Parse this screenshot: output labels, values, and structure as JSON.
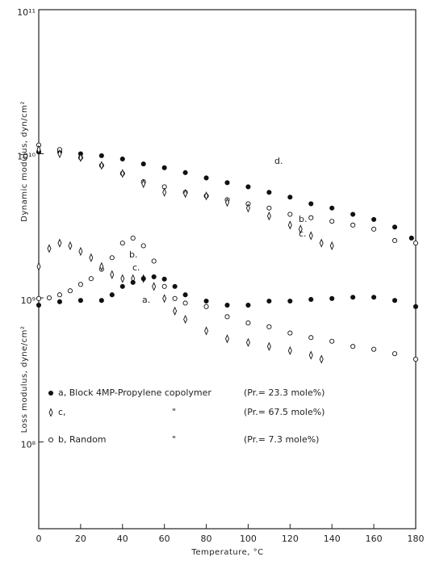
{
  "chart_data": {
    "type": "scatter",
    "x_label": "Temperature, °C",
    "y_labels": [
      "Dynamic modulus, dyn/cm²",
      "Loss modulus, dyne/cm²"
    ],
    "xlim": [
      0,
      180
    ],
    "xticks": [
      0,
      20,
      40,
      60,
      80,
      100,
      120,
      140,
      160,
      180
    ],
    "ylim": [
      25000000,
      100000000000
    ],
    "yscale": "log",
    "yticks": [
      {
        "value": 100000000,
        "label": "10⁸"
      },
      {
        "value": 1000000000,
        "label": "10⁹"
      },
      {
        "value": 10000000000,
        "label": "10¹⁰"
      },
      {
        "value": 100000000000,
        "label": "10¹¹"
      }
    ],
    "color": "#111111",
    "series": [
      {
        "label": "d.",
        "marker": "filled",
        "x": [
          0,
          10,
          20,
          30,
          40,
          50,
          60,
          70,
          80,
          90,
          100,
          110,
          120,
          130,
          140,
          150,
          160,
          170,
          178
        ],
        "values": [
          10300000000.0,
          10300000000.0,
          10000000000.0,
          9700000000.0,
          9200000000.0,
          8500000000.0,
          8000000000.0,
          7400000000.0,
          6800000000.0,
          6300000000.0,
          5900000000.0,
          5400000000.0,
          5000000000.0,
          4500000000.0,
          4200000000.0,
          3800000000.0,
          3500000000.0,
          3100000000.0,
          2600000000.0
        ]
      },
      {
        "label": "b.",
        "marker": "open",
        "x": [
          0,
          10,
          20,
          30,
          40,
          50,
          60,
          70,
          80,
          90,
          100,
          110,
          120,
          130,
          140,
          150,
          160,
          170,
          180
        ],
        "values": [
          11500000000.0,
          10700000000.0,
          9400000000.0,
          8300000000.0,
          7300000000.0,
          6400000000.0,
          5900000000.0,
          5400000000.0,
          5100000000.0,
          4800000000.0,
          4500000000.0,
          4200000000.0,
          3800000000.0,
          3600000000.0,
          3400000000.0,
          3200000000.0,
          3000000000.0,
          2500000000.0,
          2400000000.0
        ]
      },
      {
        "label": "c.",
        "marker": "diamond",
        "x": [
          0,
          10,
          20,
          30,
          40,
          50,
          60,
          70,
          80,
          90,
          100,
          110,
          120,
          125,
          130,
          135,
          140
        ],
        "values": [
          10700000000.0,
          10000000000.0,
          9400000000.0,
          8300000000.0,
          7300000000.0,
          6200000000.0,
          5400000000.0,
          5300000000.0,
          5100000000.0,
          4600000000.0,
          4200000000.0,
          3700000000.0,
          3200000000.0,
          3000000000.0,
          2700000000.0,
          2400000000.0,
          2300000000.0
        ]
      },
      {
        "label": "b.",
        "marker": "open",
        "x": [
          0,
          5,
          10,
          15,
          20,
          25,
          30,
          35,
          40,
          45,
          50,
          55,
          60,
          65,
          70,
          80,
          90,
          100,
          110,
          120,
          130,
          140,
          150,
          160,
          170,
          180
        ],
        "values": [
          990000000.0,
          1000000000.0,
          1050000000.0,
          1120000000.0,
          1240000000.0,
          1360000000.0,
          1580000000.0,
          1900000000.0,
          2400000000.0,
          2600000000.0,
          2300000000.0,
          1800000000.0,
          1200000000.0,
          990000000.0,
          920000000.0,
          870000000.0,
          740000000.0,
          670000000.0,
          630000000.0,
          570000000.0,
          530000000.0,
          500000000.0,
          460000000.0,
          440000000.0,
          410000000.0,
          375000000.0
        ]
      },
      {
        "label": "c.",
        "marker": "diamond",
        "x": [
          0,
          5,
          10,
          15,
          20,
          25,
          30,
          35,
          40,
          45,
          50,
          55,
          60,
          65,
          70,
          80,
          90,
          100,
          110,
          120,
          130,
          135
        ],
        "values": [
          1650000000.0,
          2200000000.0,
          2400000000.0,
          2300000000.0,
          2100000000.0,
          1900000000.0,
          1650000000.0,
          1450000000.0,
          1360000000.0,
          1360000000.0,
          1360000000.0,
          1200000000.0,
          990000000.0,
          810000000.0,
          710000000.0,
          590000000.0,
          520000000.0,
          490000000.0,
          460000000.0,
          430000000.0,
          400000000.0,
          375000000.0
        ]
      },
      {
        "label": "a.",
        "marker": "filled",
        "x": [
          0,
          10,
          20,
          30,
          35,
          40,
          45,
          50,
          55,
          60,
          65,
          70,
          80,
          90,
          100,
          110,
          120,
          130,
          140,
          150,
          160,
          170,
          180
        ],
        "values": [
          890000000.0,
          940000000.0,
          960000000.0,
          960000000.0,
          1050000000.0,
          1200000000.0,
          1280000000.0,
          1360000000.0,
          1400000000.0,
          1350000000.0,
          1200000000.0,
          1050000000.0,
          950000000.0,
          890000000.0,
          890000000.0,
          950000000.0,
          950000000.0,
          975000000.0,
          990000000.0,
          1010000000.0,
          1010000000.0,
          960000000.0,
          870000000.0
        ]
      }
    ],
    "legend": [
      {
        "marker": "filled",
        "label": "a, Block 4MP-Propylene copolymer",
        "note": "(Pr.= 23.3 mole%)"
      },
      {
        "marker": "diamond",
        "label": "c,",
        "ditto": "\"",
        "note": "(Pr.= 67.5 mole%)"
      },
      {
        "marker": "open",
        "label": "b, Random",
        "ditto": "\"",
        "note": "(Pr.= 7.3 mole%)"
      }
    ]
  }
}
